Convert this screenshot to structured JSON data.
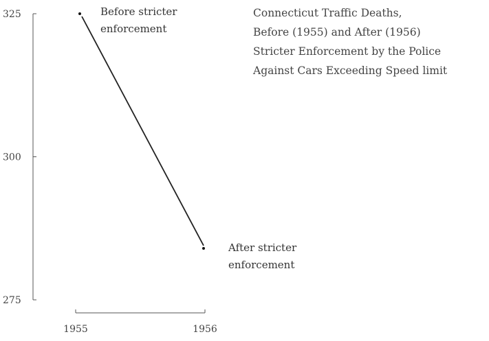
{
  "chart_data": {
    "type": "line",
    "title_lines": [
      "Connecticut Traffic Deaths,",
      "Before (1955) and After (1956)",
      "Stricter Enforcement by the Police",
      "Against Cars Exceeding Speed limit"
    ],
    "x": [
      "1955",
      "1956"
    ],
    "values": [
      325,
      284
    ],
    "ylim": [
      275,
      325
    ],
    "y_ticks": [
      325,
      300,
      275
    ],
    "annotations": [
      {
        "lines": [
          "Before stricter",
          "enforcement"
        ],
        "point_index": 0
      },
      {
        "lines": [
          "After stricter",
          "enforcement"
        ],
        "point_index": 1
      }
    ],
    "grid": false,
    "legend": "none"
  }
}
